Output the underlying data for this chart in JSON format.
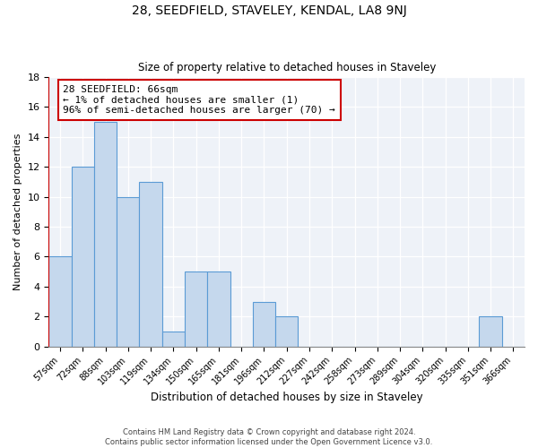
{
  "title": "28, SEEDFIELD, STAVELEY, KENDAL, LA8 9NJ",
  "subtitle": "Size of property relative to detached houses in Staveley",
  "xlabel": "Distribution of detached houses by size in Staveley",
  "ylabel": "Number of detached properties",
  "bar_color": "#c5d8ed",
  "bar_edgecolor": "#5b9bd5",
  "highlight_color": "#cc0000",
  "background_color": "#eef2f8",
  "bins": [
    "57sqm",
    "72sqm",
    "88sqm",
    "103sqm",
    "119sqm",
    "134sqm",
    "150sqm",
    "165sqm",
    "181sqm",
    "196sqm",
    "212sqm",
    "227sqm",
    "242sqm",
    "258sqm",
    "273sqm",
    "289sqm",
    "304sqm",
    "320sqm",
    "335sqm",
    "351sqm",
    "366sqm"
  ],
  "values": [
    6,
    12,
    15,
    10,
    11,
    1,
    5,
    5,
    0,
    3,
    2,
    0,
    0,
    0,
    0,
    0,
    0,
    0,
    0,
    2,
    0
  ],
  "highlight_bin_index": 0,
  "ylim": [
    0,
    18
  ],
  "yticks": [
    0,
    2,
    4,
    6,
    8,
    10,
    12,
    14,
    16,
    18
  ],
  "annotation_title": "28 SEEDFIELD: 66sqm",
  "annotation_line1": "← 1% of detached houses are smaller (1)",
  "annotation_line2": "96% of semi-detached houses are larger (70) →",
  "footer1": "Contains HM Land Registry data © Crown copyright and database right 2024.",
  "footer2": "Contains public sector information licensed under the Open Government Licence v3.0."
}
